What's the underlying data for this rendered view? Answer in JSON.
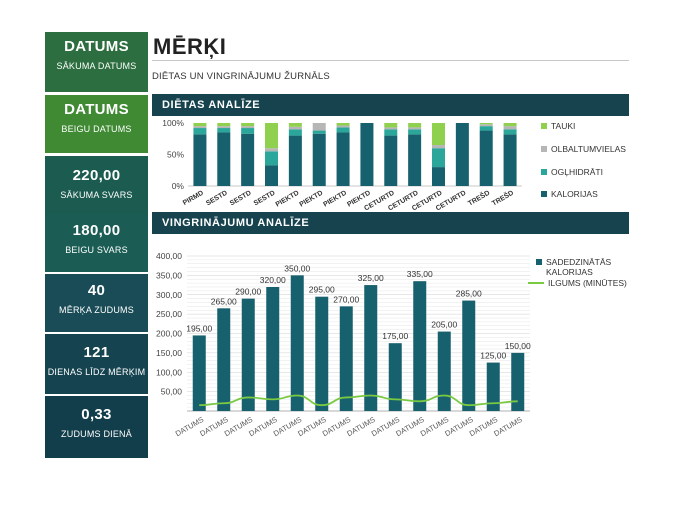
{
  "sidebar": {
    "cards": [
      {
        "value": "DATUMS",
        "label": "SĀKUMA DATUMS",
        "color": "#2c6e3f"
      },
      {
        "value": "DATUMS",
        "label": "BEIGU DATUMS",
        "color": "#3f8a33"
      },
      {
        "value": "220,00",
        "label": "SĀKUMA SVARS",
        "color": "#1c5b50"
      },
      {
        "value": "180,00",
        "label": "BEIGU SVARS",
        "color": "#1b5d54"
      },
      {
        "value": "40",
        "label": "MĒRĶA ZUDUMS",
        "color": "#194c56"
      },
      {
        "value": "121",
        "label": "DIENAS LĪDZ MĒRĶIM",
        "color": "#154450"
      },
      {
        "value": "0,33",
        "label": "ZUDUMS DIENĀ",
        "color": "#123d4a"
      }
    ]
  },
  "header": {
    "title": "MĒRĶI",
    "subtitle": "DIĒTAS UN VINGRINĀJUMU ŽURNĀLS"
  },
  "sections": {
    "diet": "DIĒTAS ANALĪZE",
    "exercise": "VINGRINĀJUMU ANALĪZE"
  },
  "chart_data": [
    {
      "type": "bar",
      "stacked": "percent",
      "categories": [
        "PIRMD",
        "SESTD",
        "SESTD",
        "SESTD",
        "PIEKTD",
        "PIEKTD",
        "PIEKTD",
        "PIEKTD",
        "CETURTD",
        "CETURTD",
        "CETURTD",
        "CETURTD",
        "TREŠD",
        "TREŠD"
      ],
      "series": [
        {
          "name": "KALORIJAS",
          "color": "#17606e",
          "values": [
            82,
            85,
            83,
            33,
            80,
            83,
            85,
            100,
            80,
            82,
            30,
            100,
            88,
            82
          ]
        },
        {
          "name": "OGĻHIDRĀTI",
          "color": "#2aa79a",
          "values": [
            10,
            7,
            9,
            22,
            10,
            5,
            8,
            0,
            10,
            8,
            30,
            0,
            7,
            8
          ]
        },
        {
          "name": "OLBALTUMVIELAS",
          "color": "#b6b6b6",
          "values": [
            3,
            3,
            3,
            5,
            4,
            12,
            3,
            0,
            3,
            3,
            5,
            0,
            3,
            5
          ]
        },
        {
          "name": "TAUKI",
          "color": "#8fd14f",
          "values": [
            5,
            5,
            5,
            40,
            6,
            0,
            4,
            0,
            7,
            7,
            35,
            0,
            2,
            5
          ]
        }
      ],
      "yticks": [
        "100%",
        "50%",
        "0%"
      ],
      "ylim": [
        0,
        100
      ],
      "legend": "right"
    },
    {
      "type": "bar",
      "categories": [
        "DATUMS",
        "DATUMS",
        "DATUMS",
        "DATUMS",
        "DATUMS",
        "DATUMS",
        "DATUMS",
        "DATUMS",
        "DATUMS",
        "DATUMS",
        "DATUMS",
        "DATUMS",
        "DATUMS",
        "DATUMS"
      ],
      "series": [
        {
          "name": "SADEDZINĀTĀS KALORIJAS",
          "type": "bar",
          "color": "#17606e",
          "values": [
            195,
            265,
            290,
            320,
            350,
            295,
            270,
            325,
            175,
            335,
            205,
            285,
            125,
            150
          ],
          "labels": [
            "195,00",
            "265,00",
            "290,00",
            "320,00",
            "350,00",
            "295,00",
            "270,00",
            "325,00",
            "175,00",
            "335,00",
            "205,00",
            "285,00",
            "125,00",
            "150,00"
          ]
        },
        {
          "name": "ILGUMS (MINŪTES)",
          "type": "line",
          "color": "#7ac943",
          "values": [
            15,
            20,
            35,
            30,
            40,
            15,
            35,
            40,
            30,
            25,
            40,
            15,
            20,
            25
          ]
        }
      ],
      "yticks": [
        "400,00",
        "350,00",
        "300,00",
        "250,00",
        "200,00",
        "150,00",
        "100,00",
        "50,00"
      ],
      "ylim": [
        0,
        400
      ],
      "grid": true,
      "legend": "right"
    }
  ]
}
